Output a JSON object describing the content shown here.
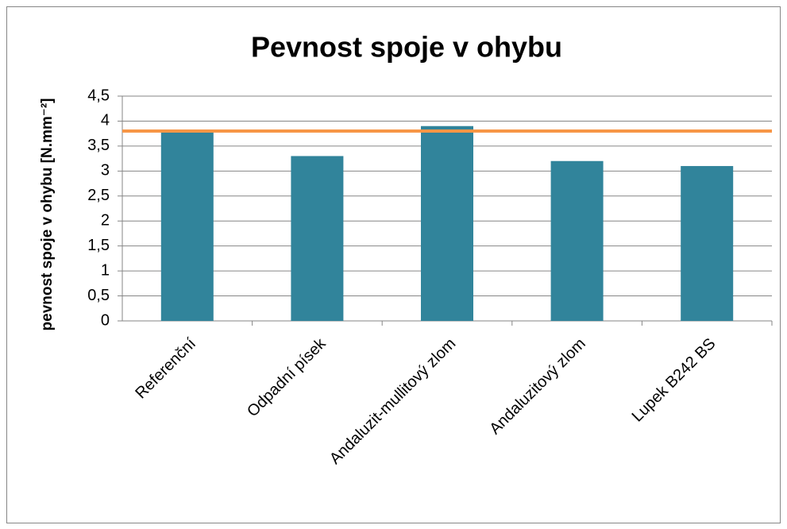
{
  "chart_data": {
    "type": "bar",
    "title": "Pevnost spoje v ohybu",
    "y_label": "pevnost spoje v ohybu [N.mm⁻²]",
    "categories": [
      "Referenční",
      "Odpadní písek",
      "Andaluzit-mullitový zlom",
      "Andaluzitový zlom",
      "Lupek B242 BS"
    ],
    "values": [
      3.8,
      3.3,
      3.9,
      3.2,
      3.1
    ],
    "color": "#31849b",
    "reference_line": {
      "value": 3.8,
      "color": "#f79646"
    },
    "ylim": [
      0,
      4.5
    ],
    "yticks": [
      0,
      {
        "value": 0.5,
        "label": "0,5"
      },
      1,
      {
        "value": 1.5,
        "label": "1,5"
      },
      2,
      {
        "value": 2.5,
        "label": "2,5"
      },
      3,
      {
        "value": 3.5,
        "label": "3,5"
      },
      4,
      {
        "value": 4.5,
        "label": "4,5"
      }
    ],
    "grid": true
  }
}
